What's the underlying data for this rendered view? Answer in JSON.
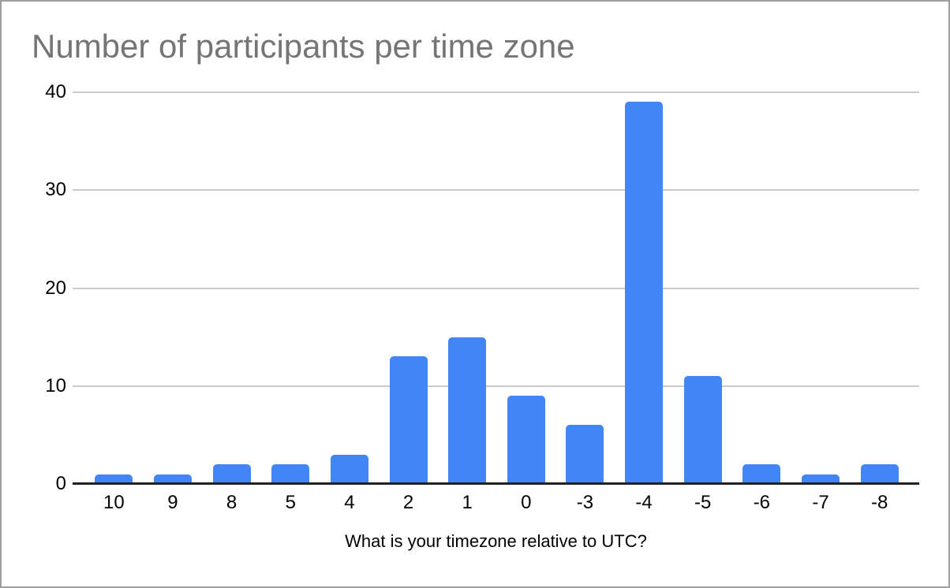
{
  "chart_data": {
    "type": "bar",
    "title": "Number of participants per time zone",
    "xlabel": "What is your timezone relative to UTC?",
    "ylabel": "",
    "categories": [
      "10",
      "9",
      "8",
      "5",
      "4",
      "2",
      "1",
      "0",
      "-3",
      "-4",
      "-5",
      "-6",
      "-7",
      "-8"
    ],
    "values": [
      1,
      1,
      2,
      2,
      3,
      13,
      15,
      9,
      6,
      39,
      11,
      2,
      1,
      2
    ],
    "yticks": [
      0,
      10,
      20,
      30,
      40
    ],
    "ylim": [
      0,
      40
    ],
    "grid": true,
    "legend": "none",
    "colors": {
      "bar": "#4285f4",
      "title": "#757575",
      "gridline": "#cccccc",
      "axis_line": "#212121",
      "tick_label": "#000000",
      "frame_border": "#9e9e9e",
      "background": "#ffffff"
    }
  }
}
